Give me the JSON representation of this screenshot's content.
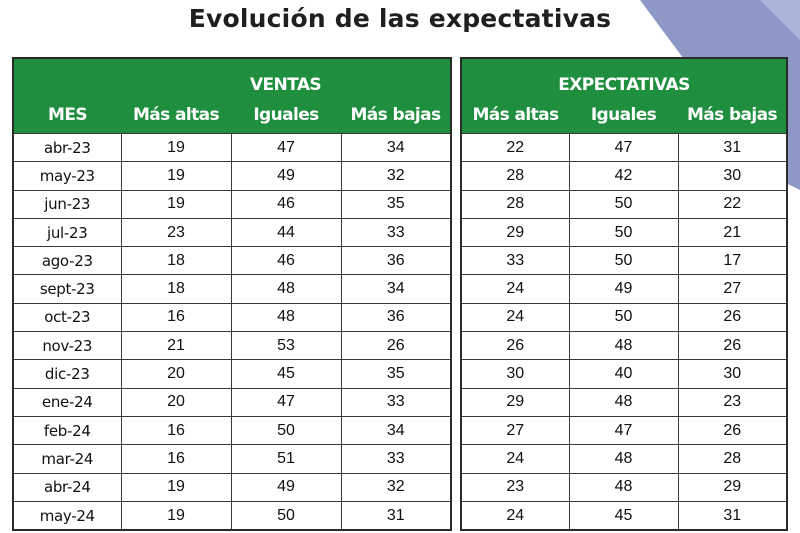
{
  "title": "Evolución de las expectativas",
  "month_header": "MES",
  "groups": {
    "ventas": {
      "label": "VENTAS",
      "columns": [
        "Más altas",
        "Iguales",
        "Más bajas"
      ]
    },
    "expectativas": {
      "label": "EXPECTATIVAS",
      "columns": [
        "Más altas",
        "Iguales",
        "Más bajas"
      ]
    }
  },
  "rows": [
    {
      "mes": "abr-23",
      "ventas": [
        19,
        47,
        34
      ],
      "expectativas": [
        22,
        47,
        31
      ]
    },
    {
      "mes": "may-23",
      "ventas": [
        19,
        49,
        32
      ],
      "expectativas": [
        28,
        42,
        30
      ]
    },
    {
      "mes": "jun-23",
      "ventas": [
        19,
        46,
        35
      ],
      "expectativas": [
        28,
        50,
        22
      ]
    },
    {
      "mes": "jul-23",
      "ventas": [
        23,
        44,
        33
      ],
      "expectativas": [
        29,
        50,
        21
      ]
    },
    {
      "mes": "ago-23",
      "ventas": [
        18,
        46,
        36
      ],
      "expectativas": [
        33,
        50,
        17
      ]
    },
    {
      "mes": "sept-23",
      "ventas": [
        18,
        48,
        34
      ],
      "expectativas": [
        24,
        49,
        27
      ]
    },
    {
      "mes": "oct-23",
      "ventas": [
        16,
        48,
        36
      ],
      "expectativas": [
        24,
        50,
        26
      ]
    },
    {
      "mes": "nov-23",
      "ventas": [
        21,
        53,
        26
      ],
      "expectativas": [
        26,
        48,
        26
      ]
    },
    {
      "mes": "dic-23",
      "ventas": [
        20,
        45,
        35
      ],
      "expectativas": [
        30,
        40,
        30
      ]
    },
    {
      "mes": "ene-24",
      "ventas": [
        20,
        47,
        33
      ],
      "expectativas": [
        29,
        48,
        23
      ]
    },
    {
      "mes": "feb-24",
      "ventas": [
        16,
        50,
        34
      ],
      "expectativas": [
        27,
        47,
        26
      ]
    },
    {
      "mes": "mar-24",
      "ventas": [
        16,
        51,
        33
      ],
      "expectativas": [
        24,
        48,
        28
      ]
    },
    {
      "mes": "abr-24",
      "ventas": [
        19,
        49,
        32
      ],
      "expectativas": [
        23,
        48,
        29
      ]
    },
    {
      "mes": "may-24",
      "ventas": [
        19,
        50,
        31
      ],
      "expectativas": [
        24,
        45,
        31
      ]
    }
  ],
  "colors": {
    "header_green": "#1f8f3f",
    "corner_blue": "#8d98c7"
  }
}
